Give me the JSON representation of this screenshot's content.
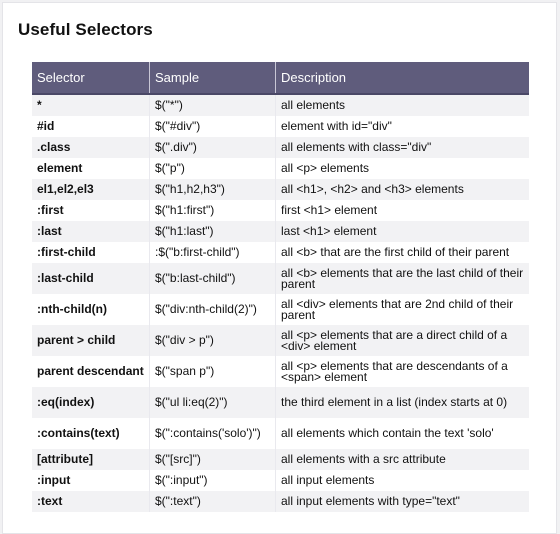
{
  "title": "Useful Selectors",
  "columns": {
    "selector": "Selector",
    "sample": "Sample",
    "description": "Description"
  },
  "rows": [
    {
      "selector": "*",
      "sample": "$(\"*\")",
      "description": "all elements"
    },
    {
      "selector": "#id",
      "sample": "$(\"#div\")",
      "description": "element with id=\"div\""
    },
    {
      "selector": ".class",
      "sample": "$(\".div\")",
      "description": "all elements with class=\"div\""
    },
    {
      "selector": "element",
      "sample": "$(\"p\")",
      "description": "all <p> elements"
    },
    {
      "selector": "el1,el2,el3",
      "sample": "$(\"h1,h2,h3\")",
      "description": "all <h1>, <h2> and <h3> elements"
    },
    {
      "selector": ":first",
      "sample": "$(\"h1:first\")",
      "description": "first <h1> element"
    },
    {
      "selector": ":last",
      "sample": "$(\"h1:last\")",
      "description": "last <h1> element"
    },
    {
      "selector": ":first-child",
      "sample": ":$(\"b:first-child\")",
      "description": "all <b> that are the first child of their parent"
    },
    {
      "selector": ":last-child",
      "sample": "$(\"b:last-child\")",
      "description": "all <b> elements that are the last child of their parent"
    },
    {
      "selector": ":nth-child(n)",
      "sample": "$(\"div:nth-child(2)\")",
      "description": "all <div> elements that are 2nd child of their parent"
    },
    {
      "selector": "parent > child",
      "sample": "$(\"div > p\")",
      "description": "all <p> elements that are a direct child of a <div> element"
    },
    {
      "selector": "parent descendant",
      "sample": "$(\"span p\")",
      "description": "all <p> elements that are descendants of a <span> element"
    },
    {
      "selector": ":eq(index)",
      "sample": "$(\"ul li:eq(2)\")",
      "description": "the third element in a list (index starts at 0)"
    },
    {
      "selector": ":contains(text)",
      "sample": "$(\":contains('solo')\")",
      "description": "all elements which contain the text 'solo'"
    },
    {
      "selector": "[attribute]",
      "sample": "$(\"[src]\")",
      "description": "all elements with a src attribute"
    },
    {
      "selector": ":input",
      "sample": "$(\":input\")",
      "description": "all input elements"
    },
    {
      "selector": ":text",
      "sample": "$(\":text\")",
      "description": "all input elements with type=\"text\""
    }
  ]
}
